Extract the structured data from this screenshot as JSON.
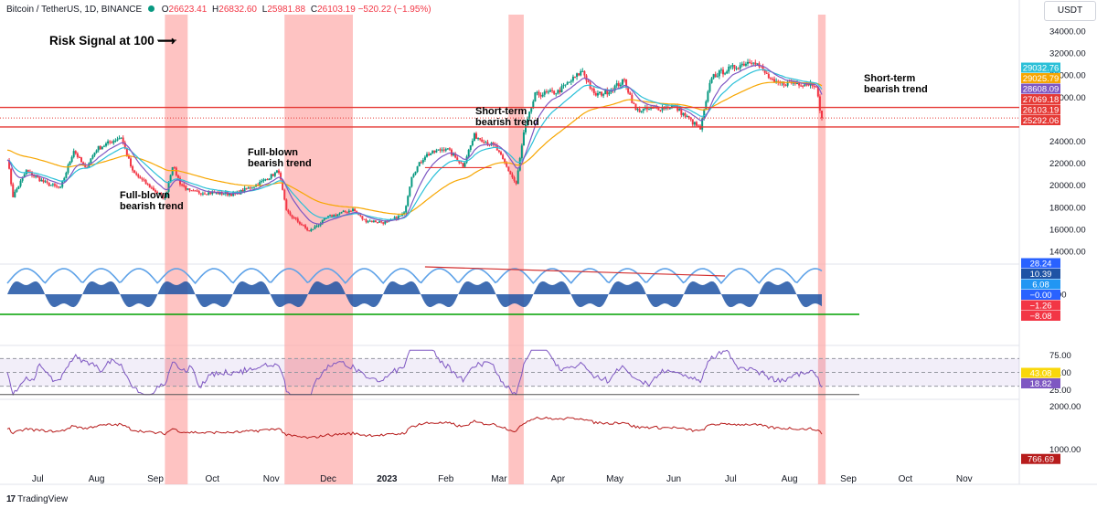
{
  "header": {
    "symbol": "Bitcoin / TetherUS, 1D, BINANCE",
    "open_label": "O",
    "open": "26623.41",
    "high_label": "H",
    "high": "26832.60",
    "low_label": "L",
    "low": "25981.88",
    "close_label": "C",
    "close": "26103.19",
    "change": "−520.22 (−1.95%)"
  },
  "currency_button": "USDT",
  "brand": "TradingView",
  "annotations": {
    "risk_signal": "Risk Signal at 100 ⟶",
    "full_blown_1": [
      "Full-blown",
      "bearish trend"
    ],
    "full_blown_2": [
      "Full-blown",
      "bearish trend"
    ],
    "short_term_1": [
      "Short-term",
      "bearish trend"
    ],
    "short_term_2": [
      "Short-term",
      "bearish trend"
    ]
  },
  "chart_data": [
    {
      "type": "candlestick",
      "panel": "price",
      "ylim": [
        13000,
        35500
      ],
      "y_ticks": [
        "34000.00",
        "32000.00",
        "30000.00",
        "28000.00",
        "24000.00",
        "22000.00",
        "20000.00",
        "18000.00",
        "16000.00",
        "14000.00"
      ],
      "x_ticks": [
        "Jul",
        "Aug",
        "Sep",
        "Oct",
        "Nov",
        "Dec",
        "2023",
        "Feb",
        "Mar",
        "Apr",
        "May",
        "Jun",
        "Jul",
        "Aug",
        "Sep",
        "Oct",
        "Nov"
      ],
      "x_range": [
        "2022-06-15",
        "2023-11-30"
      ],
      "close_path": [
        [
          "2022-06-15",
          22500
        ],
        [
          "2022-06-18",
          19000
        ],
        [
          "2022-06-25",
          21300
        ],
        [
          "2022-07-05",
          20200
        ],
        [
          "2022-07-13",
          19700
        ],
        [
          "2022-07-20",
          23200
        ],
        [
          "2022-07-26",
          21500
        ],
        [
          "2022-08-01",
          23300
        ],
        [
          "2022-08-14",
          24400
        ],
        [
          "2022-08-20",
          21200
        ],
        [
          "2022-08-28",
          20000
        ],
        [
          "2022-09-06",
          18800
        ],
        [
          "2022-09-10",
          21800
        ],
        [
          "2022-09-14",
          20200
        ],
        [
          "2022-09-19",
          19400
        ],
        [
          "2022-10-01",
          19300
        ],
        [
          "2022-10-13",
          19200
        ],
        [
          "2022-10-25",
          20100
        ],
        [
          "2022-11-05",
          21300
        ],
        [
          "2022-11-09",
          17600
        ],
        [
          "2022-11-21",
          15800
        ],
        [
          "2022-12-01",
          17100
        ],
        [
          "2022-12-14",
          17800
        ],
        [
          "2022-12-20",
          16800
        ],
        [
          "2023-01-01",
          16600
        ],
        [
          "2023-01-10",
          17400
        ],
        [
          "2023-01-14",
          20900
        ],
        [
          "2023-01-21",
          22700
        ],
        [
          "2023-02-01",
          23400
        ],
        [
          "2023-02-10",
          21800
        ],
        [
          "2023-02-16",
          24500
        ],
        [
          "2023-02-27",
          23500
        ],
        [
          "2023-03-10",
          20100
        ],
        [
          "2023-03-14",
          24700
        ],
        [
          "2023-03-20",
          28200
        ],
        [
          "2023-04-01",
          28500
        ],
        [
          "2023-04-14",
          30400
        ],
        [
          "2023-04-20",
          28200
        ],
        [
          "2023-04-26",
          28400
        ],
        [
          "2023-05-06",
          29500
        ],
        [
          "2023-05-12",
          26800
        ],
        [
          "2023-05-20",
          26900
        ],
        [
          "2023-06-01",
          27200
        ],
        [
          "2023-06-15",
          25100
        ],
        [
          "2023-06-21",
          29900
        ],
        [
          "2023-07-01",
          30600
        ],
        [
          "2023-07-13",
          31400
        ],
        [
          "2023-07-24",
          29200
        ],
        [
          "2023-08-01",
          29300
        ],
        [
          "2023-08-15",
          29200
        ],
        [
          "2023-08-17",
          26600
        ],
        [
          "2023-08-18",
          26103
        ]
      ],
      "price_labels": [
        {
          "value": "29032.76",
          "color": "#2bc0d8"
        },
        {
          "value": "29025.79",
          "color": "#f7a600"
        },
        {
          "value": "28608.09",
          "color": "#7e57c2"
        },
        {
          "value": "27069.18",
          "color": "#e53935"
        },
        {
          "value": "26103.19",
          "color": "#e53935"
        },
        {
          "value": "25292.06",
          "color": "#e53935"
        }
      ],
      "horizontal_levels": [
        27069.18,
        25292.06
      ]
    },
    {
      "type": "area",
      "panel": "oscillator",
      "y_ticks": [
        "0.00"
      ],
      "value_labels": [
        {
          "value": "28.24",
          "color": "#2962ff"
        },
        {
          "value": "10.39",
          "color": "#1e53a5"
        },
        {
          "value": "6.08",
          "color": "#2196f3"
        },
        {
          "value": "−0.00",
          "color": "#2962ff"
        },
        {
          "value": "−1.26",
          "color": "#f23645"
        },
        {
          "value": "−8.08",
          "color": "#f23645"
        }
      ]
    },
    {
      "type": "line",
      "panel": "rsi",
      "ylim": [
        15,
        85
      ],
      "y_ticks": [
        "75.00",
        "50.00",
        "25.00"
      ],
      "bands": [
        70,
        50,
        30
      ],
      "value_labels": [
        {
          "value": "43.08",
          "color": "#f9d70a"
        },
        {
          "value": "18.82",
          "color": "#7e57c2"
        }
      ]
    },
    {
      "type": "line",
      "panel": "risk",
      "y_ticks": [
        "2000.00",
        "1000.00"
      ],
      "value_labels": [
        {
          "value": "766.69",
          "color": "#b71c1c"
        }
      ]
    }
  ],
  "highlight_zones": [
    [
      "2022-09-06",
      "2022-09-18"
    ],
    [
      "2022-11-08",
      "2022-12-14"
    ],
    [
      "2023-03-06",
      "2023-03-14"
    ],
    [
      "2023-08-16",
      "2023-08-20"
    ]
  ],
  "colors": {
    "up_candle": "#089981",
    "down_candle": "#f23645",
    "zone": "#fdaaa8",
    "level_line": "#e53935",
    "ema_fast": "#7e57c2",
    "ema_mid": "#2bc0d8",
    "ema_slow": "#f7a600"
  }
}
